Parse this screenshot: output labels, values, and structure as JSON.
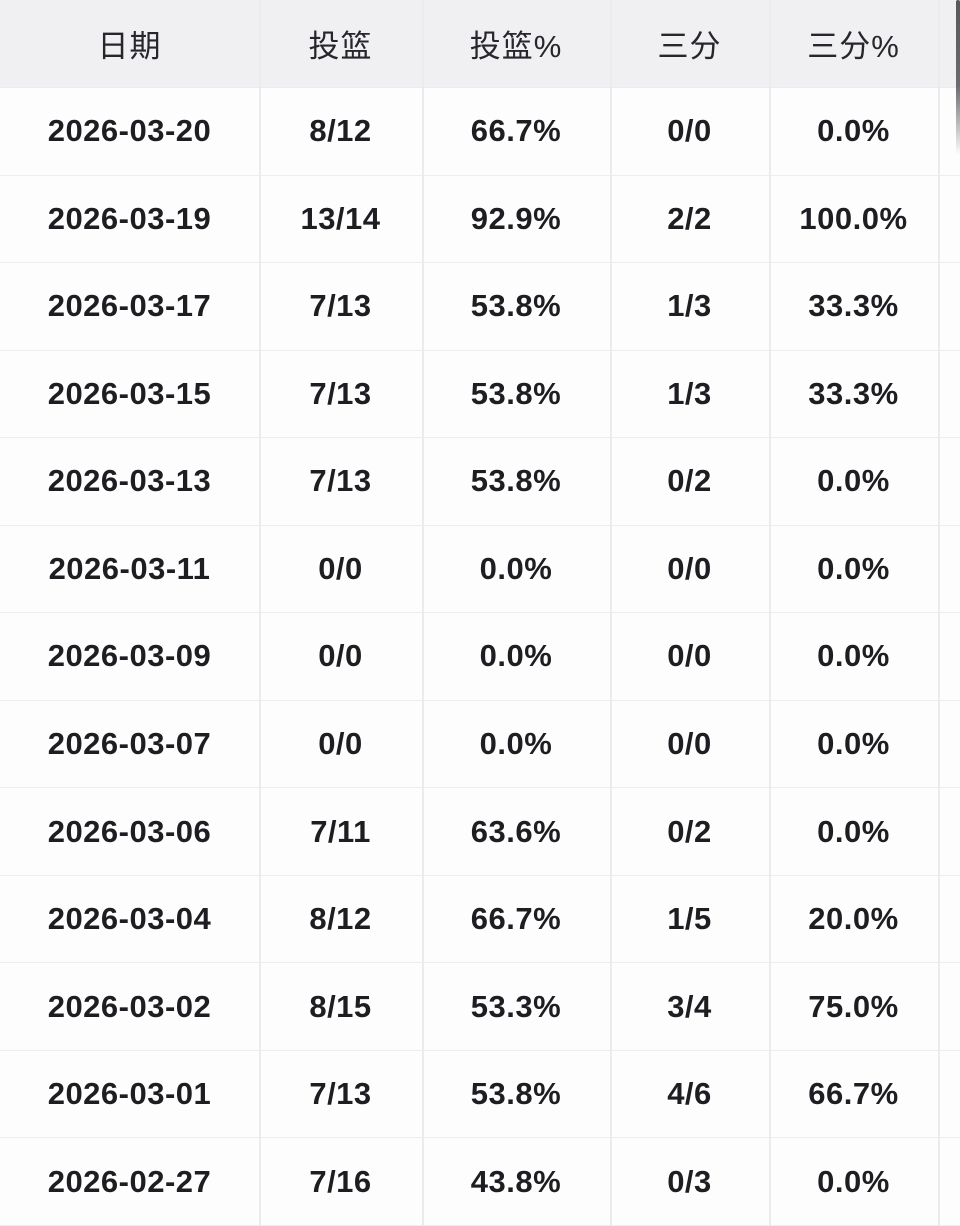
{
  "table": {
    "columns": [
      "日期",
      "投篮",
      "投篮%",
      "三分",
      "三分%"
    ],
    "column_keys": [
      "date",
      "fg",
      "fg-pct",
      "three-pt",
      "three-pct"
    ],
    "rows": [
      [
        "2026-03-20",
        "8/12",
        "66.7%",
        "0/0",
        "0.0%"
      ],
      [
        "2026-03-19",
        "13/14",
        "92.9%",
        "2/2",
        "100.0%"
      ],
      [
        "2026-03-17",
        "7/13",
        "53.8%",
        "1/3",
        "33.3%"
      ],
      [
        "2026-03-15",
        "7/13",
        "53.8%",
        "1/3",
        "33.3%"
      ],
      [
        "2026-03-13",
        "7/13",
        "53.8%",
        "0/2",
        "0.0%"
      ],
      [
        "2026-03-11",
        "0/0",
        "0.0%",
        "0/0",
        "0.0%"
      ],
      [
        "2026-03-09",
        "0/0",
        "0.0%",
        "0/0",
        "0.0%"
      ],
      [
        "2026-03-07",
        "0/0",
        "0.0%",
        "0/0",
        "0.0%"
      ],
      [
        "2026-03-06",
        "7/11",
        "63.6%",
        "0/2",
        "0.0%"
      ],
      [
        "2026-03-04",
        "8/12",
        "66.7%",
        "1/5",
        "20.0%"
      ],
      [
        "2026-03-02",
        "8/15",
        "53.3%",
        "3/4",
        "75.0%"
      ],
      [
        "2026-03-01",
        "7/13",
        "53.8%",
        "4/6",
        "66.7%"
      ],
      [
        "2026-02-27",
        "7/16",
        "43.8%",
        "0/3",
        "0.0%"
      ]
    ]
  },
  "colors": {
    "header_background": "#f0f0f3",
    "body_background": "#fdfdfd",
    "divider": "#ebebee",
    "header_text": "#26262b",
    "cell_text": "#1e1e22",
    "scrollbar_thumb": "#6a6a6f"
  }
}
